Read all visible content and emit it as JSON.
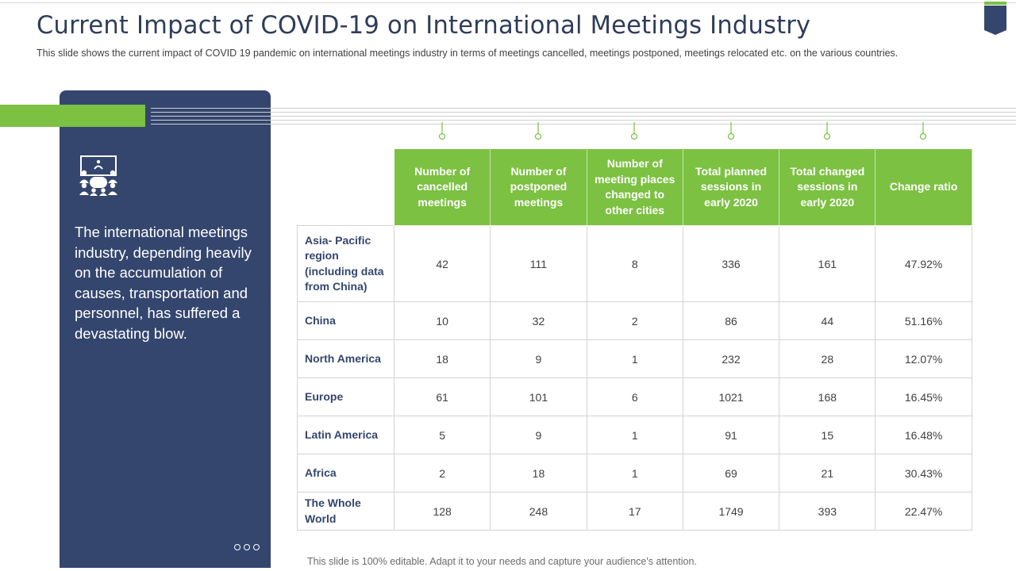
{
  "slide": {
    "title": "Current Impact of COVID-19 on International Meetings Industry",
    "subtitle": "This slide shows the current impact of COVID 19 pandemic on international meetings industry in terms of meetings cancelled, meetings postponed, meetings relocated etc. on the various countries.",
    "footer": "This slide is 100% editable. Adapt it to your needs and capture your audience's attention."
  },
  "panel": {
    "icon": "meeting-room-icon",
    "text": "The international meetings industry, depending heavily on the accumulation of causes, transportation and personnel, has suffered a devastating blow."
  },
  "colors": {
    "navy": "#34466e",
    "green": "#7cc142"
  },
  "table": {
    "headers": [
      "Number of cancelled meetings",
      "Number of postponed meetings",
      "Number of meeting places changed to other cities",
      "Total planned sessions in early 2020",
      "Total changed sessions in early 2020",
      "Change ratio"
    ],
    "rows": [
      {
        "region": "Asia- Pacific region (including data from China)",
        "values": [
          "42",
          "111",
          "8",
          "336",
          "161",
          "47.92%"
        ]
      },
      {
        "region": "China",
        "values": [
          "10",
          "32",
          "2",
          "86",
          "44",
          "51.16%"
        ]
      },
      {
        "region": "North America",
        "values": [
          "18",
          "9",
          "1",
          "232",
          "28",
          "12.07%"
        ]
      },
      {
        "region": "Europe",
        "values": [
          "61",
          "101",
          "6",
          "1021",
          "168",
          "16.45%"
        ]
      },
      {
        "region": "Latin America",
        "values": [
          "5",
          "9",
          "1",
          "91",
          "15",
          "16.48%"
        ]
      },
      {
        "region": "Africa",
        "values": [
          "2",
          "18",
          "1",
          "69",
          "21",
          "30.43%"
        ]
      },
      {
        "region": "The Whole World",
        "values": [
          "128",
          "248",
          "17",
          "1749",
          "393",
          "22.47%"
        ]
      }
    ]
  }
}
